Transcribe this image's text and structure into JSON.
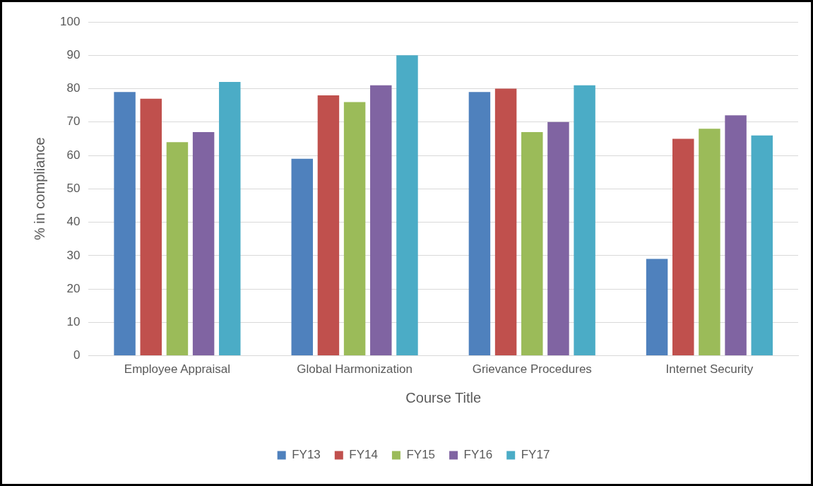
{
  "chart_data": {
    "type": "bar",
    "xlabel": "Course Title",
    "ylabel": "% in compliance",
    "categories": [
      "Employee Appraisal",
      "Global Harmonization",
      "Grievance Procedures",
      "Internet Security"
    ],
    "series": [
      {
        "name": "FY13",
        "color": "#4f81bd",
        "values": [
          79,
          59,
          79,
          29
        ]
      },
      {
        "name": "FY14",
        "color": "#c0504d",
        "values": [
          77,
          78,
          80,
          65
        ]
      },
      {
        "name": "FY15",
        "color": "#9bbb59",
        "values": [
          64,
          76,
          67,
          68
        ]
      },
      {
        "name": "FY16",
        "color": "#8064a2",
        "values": [
          67,
          81,
          70,
          72
        ]
      },
      {
        "name": "FY17",
        "color": "#4bacc6",
        "values": [
          82,
          90,
          81,
          66
        ]
      }
    ],
    "ylim": [
      0,
      100
    ],
    "yticks": [
      0,
      10,
      20,
      30,
      40,
      50,
      60,
      70,
      80,
      90,
      100
    ],
    "grid": "y",
    "legend": "bottom"
  }
}
